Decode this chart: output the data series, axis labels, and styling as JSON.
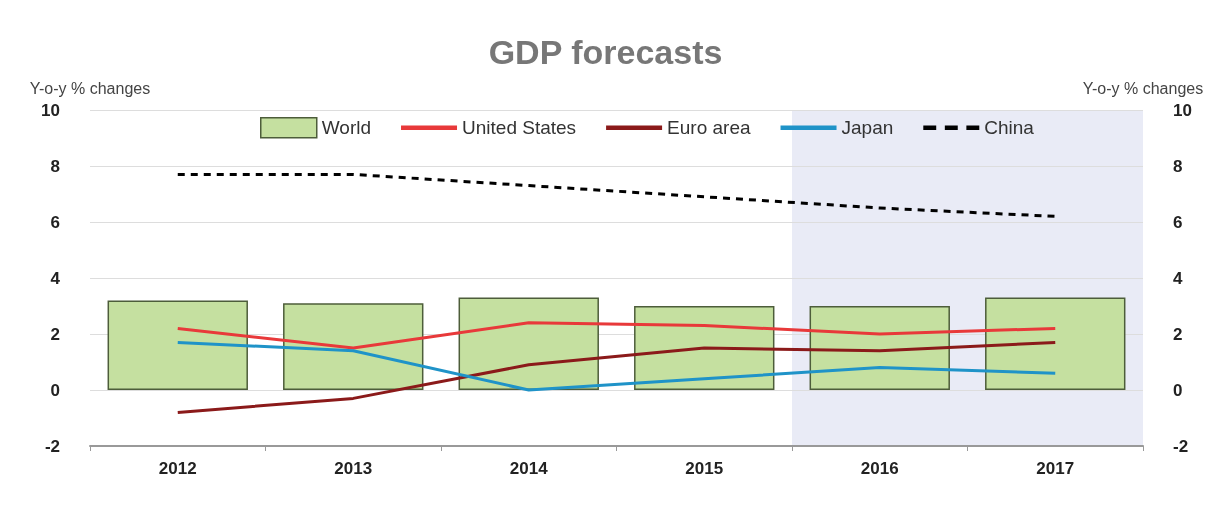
{
  "chart_data": {
    "type": "bar",
    "title": "GDP forecasts",
    "ylabel": "Y-o-y % changes",
    "y2label": "Y-o-y % changes",
    "categories": [
      "2012",
      "2013",
      "2014",
      "2015",
      "2016",
      "2017"
    ],
    "series": [
      {
        "name": "World",
        "color": "#c5e0a0",
        "values": [
          3.2,
          3.1,
          3.3,
          3.0,
          3.0,
          3.3
        ]
      },
      {
        "name": "United States",
        "type": "line",
        "color": "#e8393a",
        "values": [
          2.2,
          1.5,
          2.4,
          2.3,
          2.0,
          2.2
        ]
      },
      {
        "name": "Euro area",
        "type": "line",
        "color": "#8b1a1a",
        "values": [
          -0.8,
          -0.3,
          0.9,
          1.5,
          1.4,
          1.7
        ]
      },
      {
        "name": "Japan",
        "type": "line",
        "color": "#1f93c8",
        "values": [
          1.7,
          1.4,
          0.0,
          0.4,
          0.8,
          0.6
        ]
      },
      {
        "name": "China",
        "type": "line",
        "color": "#000000",
        "line_style": "dashed",
        "values": [
          7.7,
          7.7,
          7.3,
          6.9,
          6.5,
          6.2
        ]
      }
    ],
    "ylim": [
      -2,
      10
    ],
    "yticks": [
      -2,
      0,
      2,
      4,
      6,
      8,
      10
    ],
    "y2lim": [
      -2,
      10
    ],
    "y2ticks": [
      -2,
      0,
      2,
      4,
      6,
      8,
      10
    ],
    "bands": [
      {
        "axis": "x",
        "from": "2016",
        "to": "2017",
        "color": "#e9ebf6"
      }
    ],
    "grid": "y",
    "legend": "top",
    "marker": "none"
  }
}
